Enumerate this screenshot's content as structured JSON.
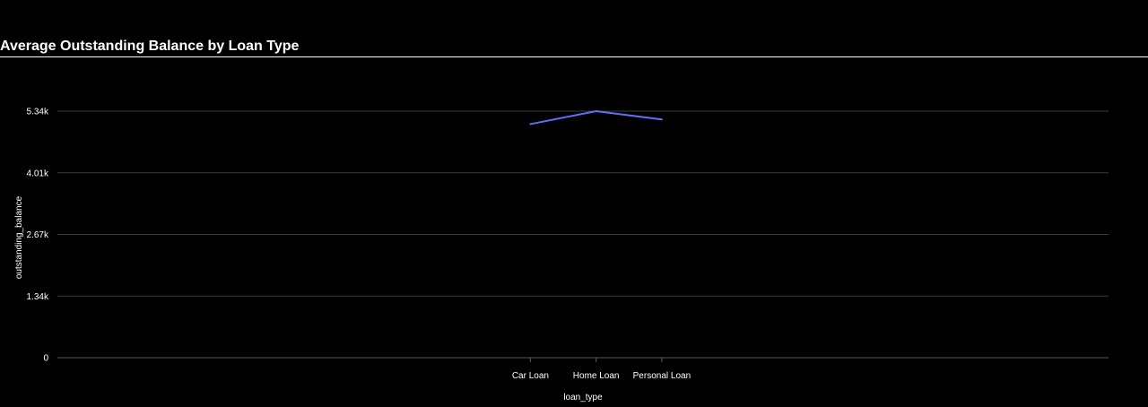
{
  "chart_data": {
    "type": "line",
    "title": "Average Outstanding Balance by Loan Type",
    "xlabel": "loan_type",
    "ylabel": "outstanding_balance",
    "categories": [
      "Car Loan",
      "Home Loan",
      "Personal Loan"
    ],
    "series": [
      {
        "values": [
          5060,
          5340,
          5160
        ],
        "color": "#636efa"
      }
    ],
    "ylim": [
      0,
      5340
    ],
    "yticks": [
      {
        "value": 0,
        "label": "0"
      },
      {
        "value": 1335,
        "label": "1.34k"
      },
      {
        "value": 2670,
        "label": "2.67k"
      },
      {
        "value": 4005,
        "label": "4.01k"
      },
      {
        "value": 5340,
        "label": "5.34k"
      }
    ],
    "x_range": [
      -7.2,
      8.8
    ],
    "grid": true,
    "colors": {
      "background": "#000000",
      "grid": "#3a3a3a",
      "text": "#ffffff"
    }
  }
}
